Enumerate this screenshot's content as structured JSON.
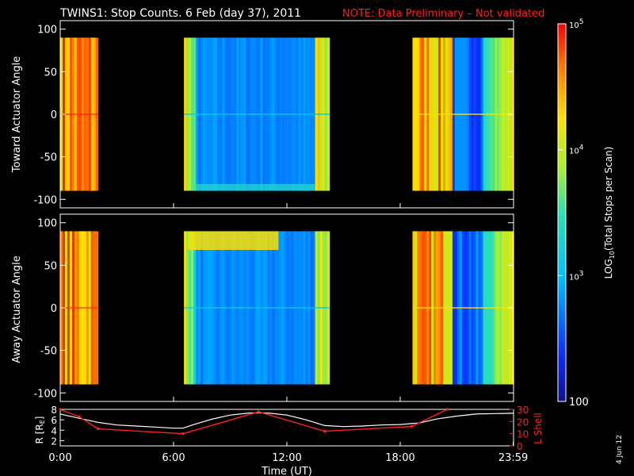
{
  "header": {
    "title": "TWINS1: Stop Counts.  6 Feb (day  37), 2011",
    "note": "NOTE: Data Preliminary – Not validated"
  },
  "side_label": "4 Jun 12",
  "colors": {
    "note": "#ff2020",
    "lshell": "#ff2020",
    "radius": "#ffffff",
    "background": "#000000"
  },
  "chart_data": [
    {
      "type": "heatmap",
      "panel": "toward",
      "ylabel": "Toward Actuator Angle",
      "ylim": [
        -110,
        110
      ],
      "yticks": [
        100,
        50,
        0,
        -50,
        -100
      ],
      "data_yrange": [
        -90,
        90
      ],
      "xlim": [
        0,
        24
      ],
      "segments": [
        {
          "start": 0.0,
          "end": 2.0,
          "level": "high",
          "mean_log_counts": 4.55
        },
        {
          "start": 6.55,
          "end": 14.25,
          "level": "low",
          "mean_log_counts": 2.75
        },
        {
          "start": 18.65,
          "end": 24.0,
          "level": "mixed",
          "mean_log_counts": 3.9
        }
      ],
      "features": [
        "stripe at 0 degrees",
        "enhanced counts near -90 degrees"
      ]
    },
    {
      "type": "heatmap",
      "panel": "away",
      "ylabel": "Away Actuator Angle",
      "ylim": [
        -110,
        110
      ],
      "yticks": [
        100,
        50,
        0,
        -50,
        -100
      ],
      "data_yrange": [
        -90,
        90
      ],
      "xlim": [
        0,
        24
      ],
      "segments": [
        {
          "start": 0.0,
          "end": 2.0,
          "level": "high",
          "mean_log_counts": 4.5
        },
        {
          "start": 6.55,
          "end": 14.25,
          "level": "low",
          "mean_log_counts": 2.75
        },
        {
          "start": 18.65,
          "end": 24.0,
          "level": "mixed",
          "mean_log_counts": 3.9
        }
      ],
      "features": [
        "band of high counts near +80 degrees",
        "stripe at 0 degrees"
      ]
    },
    {
      "type": "line",
      "panel": "orbit",
      "ylabel_left": "R [R",
      "ylabel_left_sub": "E",
      "ylabel_left_end": "]",
      "ylabel_right": "L Shell",
      "xlabel": "Time (UT)",
      "xlim": [
        0,
        24
      ],
      "xticks": [
        {
          "value": 0,
          "label": "0:00"
        },
        {
          "value": 6,
          "label": "6:00"
        },
        {
          "value": 12,
          "label": "12:00"
        },
        {
          "value": 18,
          "label": "18:00"
        },
        {
          "value": 23.983,
          "label": "23:59"
        }
      ],
      "ylim_left": [
        1,
        8
      ],
      "yticks_left": [
        2,
        4,
        6,
        8
      ],
      "ylim_right": [
        0,
        30
      ],
      "yticks_right": [
        0,
        10,
        20,
        30
      ],
      "series": [
        {
          "axis": "left",
          "x": [
            0,
            1,
            2,
            3,
            4,
            5,
            6,
            6.5,
            7,
            8,
            9,
            10,
            10.5,
            11,
            12,
            13,
            14,
            15,
            16,
            17,
            18,
            19,
            20,
            21,
            22,
            23,
            24
          ],
          "y": [
            7.1,
            6.3,
            5.5,
            5.0,
            4.8,
            4.6,
            4.4,
            4.4,
            5.0,
            6.1,
            6.9,
            7.3,
            7.35,
            7.3,
            6.9,
            6.0,
            4.9,
            4.7,
            4.8,
            5.0,
            5.1,
            5.4,
            6.2,
            6.7,
            7.1,
            7.2,
            7.25
          ]
        },
        {
          "axis": "right",
          "x": [
            0,
            1,
            2,
            6.5,
            10.5,
            14,
            18.6,
            20.5
          ],
          "y": [
            30,
            24,
            14,
            10,
            28,
            12,
            16,
            30
          ]
        }
      ]
    }
  ],
  "colorbar": {
    "label_main": "LOG",
    "label_sub": "10",
    "label_rest": "(Total Stops per Scan)",
    "log_range": [
      2.0,
      5.0
    ],
    "ticks": [
      {
        "log": 5,
        "base": "10",
        "exp": "5"
      },
      {
        "log": 4,
        "base": "10",
        "exp": "4"
      },
      {
        "log": 3,
        "base": "10",
        "exp": "3"
      },
      {
        "log": 2,
        "base": "100",
        "exp": ""
      }
    ]
  }
}
